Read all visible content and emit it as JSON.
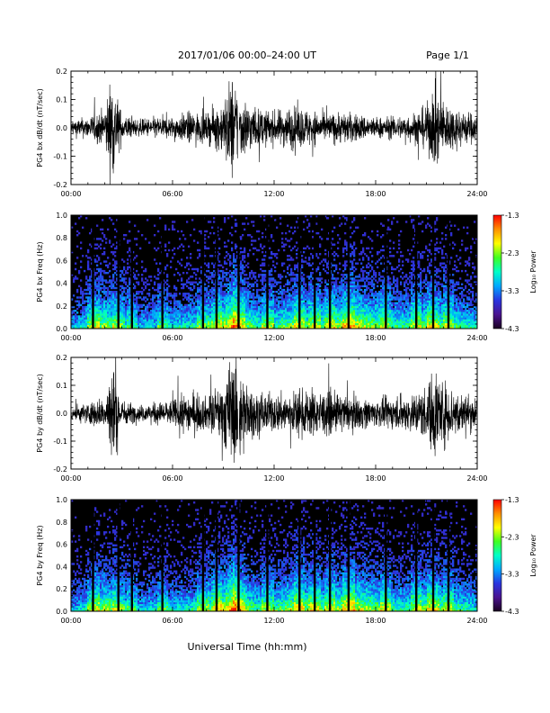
{
  "header": {
    "title": "2017/01/06  00:00–24:00 UT",
    "page": "Page 1/1"
  },
  "footer": {
    "xlabel": "Universal Time (hh:mm)"
  },
  "colors": {
    "trace": "#000000",
    "spectrogram_background": "#000000",
    "colormap": [
      "#1a0020",
      "#4b1490",
      "#2a35e0",
      "#00a8ff",
      "#00ffc8",
      "#40ff20",
      "#ffff00",
      "#ff9000",
      "#ff0000"
    ]
  },
  "chart_data": [
    {
      "type": "line",
      "panel": "bx-waveform",
      "ylabel": "PG4 bx dB/dt (nT/sec)",
      "x_unit": "UT hours",
      "xlim": [
        0,
        24
      ],
      "ylim": [
        -0.2,
        0.2
      ],
      "xticks": [
        "00:00",
        "06:00",
        "12:00",
        "18:00",
        "24:00"
      ],
      "yticks": [
        "-0.2",
        "-0.1",
        "0.0",
        "0.1",
        "0.2"
      ],
      "ytick_values": [
        -0.2,
        -0.1,
        0.0,
        0.1,
        0.2
      ],
      "envelope": {
        "hours": [
          0,
          1,
          2,
          2.4,
          3,
          4,
          5,
          6,
          7,
          8,
          9,
          9.5,
          10,
          11,
          12,
          13,
          14,
          15,
          16,
          17,
          18,
          19,
          20,
          21,
          21.5,
          22,
          23,
          24
        ],
        "amplitude": [
          0.03,
          0.04,
          0.07,
          0.2,
          0.05,
          0.03,
          0.04,
          0.04,
          0.06,
          0.05,
          0.1,
          0.2,
          0.12,
          0.07,
          0.06,
          0.08,
          0.07,
          0.05,
          0.06,
          0.05,
          0.04,
          0.04,
          0.05,
          0.08,
          0.15,
          0.1,
          0.07,
          0.05
        ]
      },
      "gaps_hours": [
        9.9
      ]
    },
    {
      "type": "heatmap",
      "panel": "bx-spectrogram",
      "ylabel": "PG4 bx Freq (Hz)",
      "x_unit": "UT hours",
      "xlim": [
        0,
        24
      ],
      "ylim": [
        0,
        1.0
      ],
      "xticks": [
        "00:00",
        "06:00",
        "12:00",
        "18:00",
        "24:00"
      ],
      "yticks": [
        "0.0",
        "0.2",
        "0.4",
        "0.6",
        "0.8",
        "1.0"
      ],
      "ytick_values": [
        0.0,
        0.2,
        0.4,
        0.6,
        0.8,
        1.0
      ],
      "colorbar": {
        "label": "Log₁₀ Power",
        "ticks": [
          "-1.3",
          "-2.3",
          "-3.3",
          "-4.3"
        ],
        "range": [
          -4.3,
          -1.3
        ]
      },
      "activity": {
        "hours": [
          0,
          1,
          2,
          3,
          4,
          5,
          6,
          7,
          8,
          9,
          9.5,
          10,
          11,
          12,
          13,
          14,
          15,
          16,
          17,
          18,
          19,
          20,
          21,
          22,
          23,
          24
        ],
        "level": [
          0.35,
          0.5,
          0.7,
          0.5,
          0.4,
          0.45,
          0.45,
          0.5,
          0.5,
          0.7,
          0.9,
          0.7,
          0.55,
          0.55,
          0.65,
          0.6,
          0.6,
          0.7,
          0.75,
          0.65,
          0.55,
          0.55,
          0.65,
          0.6,
          0.55,
          0.45
        ]
      },
      "data_gaps_hours": [
        1.3,
        2.8,
        3.6,
        5.4,
        7.8,
        8.6,
        9.9,
        11.6,
        13.5,
        14.4,
        15.3,
        16.4,
        18.6,
        20.4,
        21.4,
        22.3
      ]
    },
    {
      "type": "line",
      "panel": "by-waveform",
      "ylabel": "PG4 by dB/dt (nT/sec)",
      "x_unit": "UT hours",
      "xlim": [
        0,
        24
      ],
      "ylim": [
        -0.2,
        0.2
      ],
      "xticks": [
        "00:00",
        "06:00",
        "12:00",
        "18:00",
        "24:00"
      ],
      "yticks": [
        "-0.2",
        "-0.1",
        "0.0",
        "0.1",
        "0.2"
      ],
      "ytick_values": [
        -0.2,
        -0.1,
        0.0,
        0.1,
        0.2
      ],
      "envelope": {
        "hours": [
          0,
          1,
          2,
          2.4,
          3,
          4,
          5,
          6,
          7,
          8,
          9,
          9.4,
          9.8,
          10.5,
          11,
          12,
          13,
          14,
          15,
          16,
          17,
          18,
          19,
          20,
          21,
          21.5,
          22,
          23,
          24
        ],
        "amplitude": [
          0.03,
          0.04,
          0.06,
          0.2,
          0.05,
          0.03,
          0.04,
          0.05,
          0.08,
          0.06,
          0.12,
          0.2,
          0.2,
          0.1,
          0.08,
          0.07,
          0.08,
          0.09,
          0.08,
          0.07,
          0.06,
          0.05,
          0.06,
          0.07,
          0.1,
          0.18,
          0.12,
          0.08,
          0.06
        ]
      },
      "gaps_hours": [
        9.9
      ]
    },
    {
      "type": "heatmap",
      "panel": "by-spectrogram",
      "ylabel": "PG4 by Freq (Hz)",
      "x_unit": "UT hours",
      "xlim": [
        0,
        24
      ],
      "ylim": [
        0,
        1.0
      ],
      "xticks": [
        "00:00",
        "06:00",
        "12:00",
        "18:00",
        "24:00"
      ],
      "yticks": [
        "0.0",
        "0.2",
        "0.4",
        "0.6",
        "0.8",
        "1.0"
      ],
      "ytick_values": [
        0.0,
        0.2,
        0.4,
        0.6,
        0.8,
        1.0
      ],
      "colorbar": {
        "label": "Log₁₀ Power",
        "ticks": [
          "-1.3",
          "-2.3",
          "-3.3",
          "-4.3"
        ],
        "range": [
          -4.3,
          -1.3
        ]
      },
      "activity": {
        "hours": [
          0,
          1,
          2,
          3,
          4,
          5,
          6,
          7,
          8,
          9,
          9.5,
          10,
          11,
          12,
          13,
          14,
          15,
          16,
          17,
          18,
          19,
          20,
          21,
          22,
          23,
          24
        ],
        "level": [
          0.35,
          0.5,
          0.7,
          0.5,
          0.4,
          0.45,
          0.45,
          0.5,
          0.55,
          0.75,
          0.95,
          0.7,
          0.55,
          0.55,
          0.7,
          0.65,
          0.6,
          0.7,
          0.75,
          0.65,
          0.55,
          0.55,
          0.65,
          0.6,
          0.55,
          0.45
        ]
      },
      "data_gaps_hours": [
        1.3,
        2.8,
        3.6,
        5.4,
        7.8,
        8.6,
        9.9,
        11.6,
        13.5,
        14.4,
        15.3,
        16.4,
        18.6,
        20.4,
        21.4,
        22.3
      ]
    }
  ]
}
